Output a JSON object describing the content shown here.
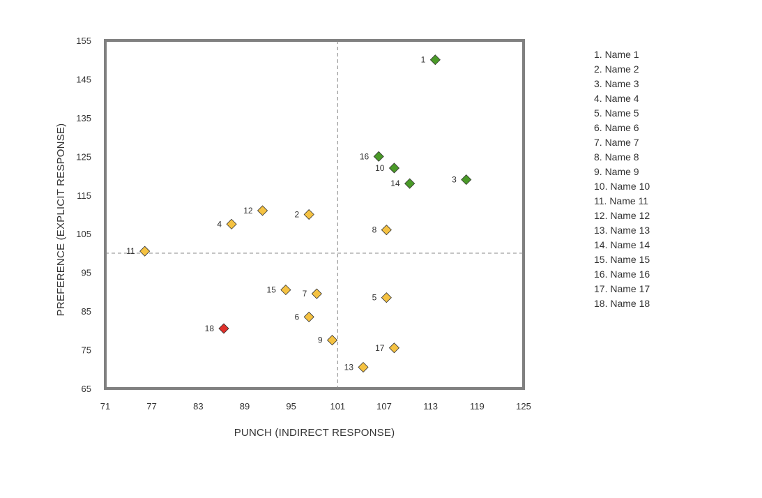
{
  "chart_data": {
    "type": "scatter",
    "xlabel": "PUNCH (INDIRECT RESPONSE)",
    "ylabel": "PREFERENCE (EXPLICIT RESPONSE)",
    "xlim": [
      71,
      125
    ],
    "ylim": [
      65,
      155
    ],
    "xticks": [
      71,
      77,
      83,
      89,
      95,
      101,
      107,
      113,
      119,
      125
    ],
    "yticks": [
      65,
      75,
      85,
      95,
      105,
      115,
      125,
      135,
      145,
      155
    ],
    "reference_lines": {
      "x": 101,
      "y": 100
    },
    "grid": false,
    "legend_position": "right",
    "colors": {
      "green": "#4a9a28",
      "yellow": "#f5c242",
      "red": "#e0302a",
      "frame": "#808080"
    },
    "points": [
      {
        "id": "1",
        "x": 113.6,
        "y": 150,
        "color": "green"
      },
      {
        "id": "2",
        "x": 97.3,
        "y": 110,
        "color": "yellow"
      },
      {
        "id": "3",
        "x": 117.6,
        "y": 119,
        "color": "green"
      },
      {
        "id": "4",
        "x": 87.3,
        "y": 107.5,
        "color": "yellow"
      },
      {
        "id": "5",
        "x": 107.3,
        "y": 88.5,
        "color": "yellow"
      },
      {
        "id": "6",
        "x": 97.3,
        "y": 83.5,
        "color": "yellow"
      },
      {
        "id": "7",
        "x": 98.3,
        "y": 89.5,
        "color": "yellow"
      },
      {
        "id": "8",
        "x": 107.3,
        "y": 106,
        "color": "yellow"
      },
      {
        "id": "9",
        "x": 100.3,
        "y": 77.5,
        "color": "yellow"
      },
      {
        "id": "10",
        "x": 108.3,
        "y": 122,
        "color": "green"
      },
      {
        "id": "11",
        "x": 76.1,
        "y": 100.5,
        "color": "yellow"
      },
      {
        "id": "12",
        "x": 91.3,
        "y": 111,
        "color": "yellow"
      },
      {
        "id": "13",
        "x": 104.3,
        "y": 70.5,
        "color": "yellow"
      },
      {
        "id": "14",
        "x": 110.3,
        "y": 118,
        "color": "green"
      },
      {
        "id": "15",
        "x": 94.3,
        "y": 90.5,
        "color": "yellow"
      },
      {
        "id": "16",
        "x": 106.3,
        "y": 125,
        "color": "green"
      },
      {
        "id": "17",
        "x": 108.3,
        "y": 75.5,
        "color": "yellow"
      },
      {
        "id": "18",
        "x": 86.3,
        "y": 80.5,
        "color": "red"
      }
    ],
    "legend": [
      "1. Name 1",
      "2. Name 2",
      "3. Name 3",
      "4. Name 4",
      "5. Name 5",
      "6. Name 6",
      "7. Name 7",
      "8. Name 8",
      "9. Name 9",
      "10. Name 10",
      "11. Name 11",
      "12. Name 12",
      "13. Name 13",
      "14. Name 14",
      "15. Name 15",
      "16. Name 16",
      "17. Name 17",
      "18. Name 18"
    ]
  }
}
